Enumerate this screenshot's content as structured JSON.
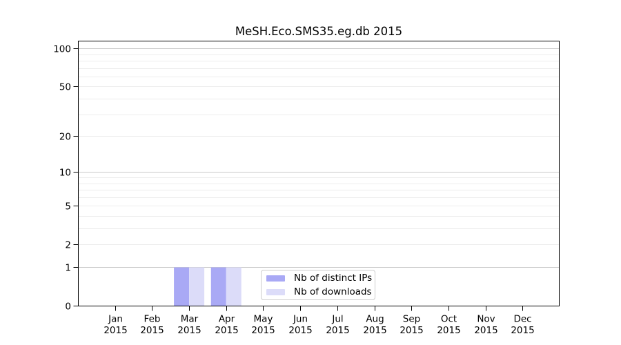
{
  "chart_data": {
    "type": "bar",
    "title": "MeSH.Eco.SMS35.eg.db 2015",
    "categories": [
      "Jan 2015",
      "Feb 2015",
      "Mar 2015",
      "Apr 2015",
      "May 2015",
      "Jun 2015",
      "Jul 2015",
      "Aug 2015",
      "Sep 2015",
      "Oct 2015",
      "Nov 2015",
      "Dec 2015"
    ],
    "series": [
      {
        "name": "Nb of distinct IPs",
        "color": "#a9a9f5",
        "values": [
          0,
          0,
          1,
          1,
          0,
          0,
          0,
          0,
          0,
          0,
          0,
          0
        ]
      },
      {
        "name": "Nb of downloads",
        "color": "#dcdcf9",
        "values": [
          0,
          0,
          1,
          1,
          0,
          0,
          0,
          0,
          0,
          0,
          0,
          0
        ]
      }
    ],
    "xlabel": "",
    "ylabel": "",
    "y_scale": "log1p",
    "ylim": [
      0,
      115
    ],
    "y_ticks": [
      0,
      1,
      2,
      5,
      10,
      20,
      50,
      100
    ],
    "y_gridlines_major": [
      1,
      10,
      100
    ],
    "y_gridlines_minor": [
      2,
      3,
      4,
      5,
      6,
      7,
      8,
      9,
      20,
      30,
      40,
      50,
      60,
      70,
      80,
      90
    ],
    "grid": true,
    "legend": {
      "position": "inside-bottom-center",
      "entries": [
        "Nb of distinct IPs",
        "Nb of downloads"
      ]
    },
    "colors": {
      "grid_major": "#c9c9c9",
      "grid_minor": "#ececec",
      "axis": "#000000",
      "text": "#000000",
      "background": "#ffffff"
    }
  }
}
